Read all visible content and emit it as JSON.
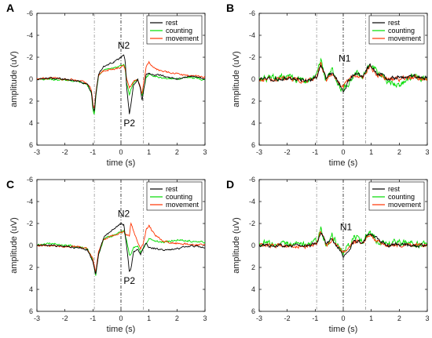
{
  "colors": {
    "rest": "#000000",
    "counting": "#00dd00",
    "movement": "#ff3300"
  },
  "chart_data": [
    {
      "type": "line",
      "panel": "A",
      "xlabel": "time (s)",
      "ylabel": "amplitude (uV)",
      "xlim": [
        -3,
        3
      ],
      "ylim": [
        6,
        -6
      ],
      "y_inverted": true,
      "xticks": [
        -3,
        -2,
        -1,
        0,
        1,
        2,
        3
      ],
      "yticks": [
        -6,
        -4,
        -2,
        0,
        2,
        4,
        6
      ],
      "vlines": [
        -0.95,
        0,
        0.8
      ],
      "legend": [
        "rest",
        "counting",
        "movement"
      ],
      "legend_position": "top-right",
      "annotations": [
        {
          "text": "N2",
          "x": 0.1,
          "y": -2.8
        },
        {
          "text": "P2",
          "x": 0.3,
          "y": 4.3
        }
      ],
      "series": [
        {
          "name": "rest",
          "x": [
            -3,
            -2.5,
            -2,
            -1.5,
            -1.2,
            -1.05,
            -1.0,
            -0.95,
            -0.9,
            -0.8,
            -0.6,
            -0.3,
            -0.1,
            0,
            0.1,
            0.15,
            0.2,
            0.3,
            0.35,
            0.45,
            0.6,
            0.7,
            0.75,
            0.8,
            0.9,
            1.0,
            1.2,
            1.5,
            2.0,
            2.5,
            3.0
          ],
          "y": [
            0,
            -0.1,
            0,
            0.2,
            0.5,
            1.2,
            2.5,
            3.0,
            1.5,
            -0.5,
            -1.2,
            -1.5,
            -1.8,
            -2.0,
            -2.2,
            -1.8,
            0.5,
            3.2,
            2.5,
            0.5,
            0,
            1.0,
            2.0,
            1.2,
            -0.4,
            -0.5,
            -0.4,
            -0.3,
            0,
            -0.3,
            0
          ]
        },
        {
          "name": "counting",
          "x": [
            -3,
            -2.5,
            -2,
            -1.5,
            -1.2,
            -1.05,
            -1.0,
            -0.95,
            -0.9,
            -0.8,
            -0.6,
            -0.3,
            -0.1,
            0,
            0.1,
            0.15,
            0.2,
            0.3,
            0.35,
            0.45,
            0.6,
            0.7,
            0.75,
            0.8,
            0.9,
            1.0,
            1.2,
            1.5,
            2.0,
            2.5,
            3.0
          ],
          "y": [
            0,
            0,
            0.1,
            0.2,
            0.5,
            1.3,
            2.8,
            3.3,
            1.6,
            -0.3,
            -0.9,
            -1.0,
            -1.1,
            -1.2,
            -1.3,
            -1.0,
            0.2,
            1.5,
            1.0,
            0.3,
            0,
            0.8,
            1.6,
            1.0,
            -0.2,
            -0.4,
            -0.3,
            -0.1,
            0,
            -0.2,
            0.1
          ]
        },
        {
          "name": "movement",
          "x": [
            -3,
            -2.5,
            -2,
            -1.5,
            -1.2,
            -1.05,
            -1.0,
            -0.95,
            -0.9,
            -0.8,
            -0.6,
            -0.3,
            -0.1,
            0,
            0.1,
            0.15,
            0.2,
            0.3,
            0.35,
            0.45,
            0.6,
            0.7,
            0.75,
            0.8,
            0.9,
            1.0,
            1.2,
            1.5,
            2.0,
            2.5,
            3.0
          ],
          "y": [
            0,
            -0.1,
            0,
            0.1,
            0.4,
            1.0,
            2.2,
            2.7,
            1.3,
            -0.4,
            -0.8,
            -0.9,
            -1.0,
            -1.1,
            -1.2,
            -0.9,
            0,
            0.8,
            0.6,
            0.2,
            0,
            0.7,
            1.4,
            0.5,
            -1.2,
            -1.5,
            -1.0,
            -0.7,
            -0.5,
            -0.3,
            -0.2
          ]
        }
      ]
    },
    {
      "type": "line",
      "panel": "B",
      "xlabel": "time (s)",
      "ylabel": "amplitude (uV)",
      "xlim": [
        -3,
        3
      ],
      "ylim": [
        6,
        -6
      ],
      "y_inverted": true,
      "xticks": [
        -3,
        -2,
        -1,
        0,
        1,
        2,
        3
      ],
      "yticks": [
        -6,
        -4,
        -2,
        0,
        2,
        4,
        6
      ],
      "vlines": [
        -0.95,
        0,
        0.8
      ],
      "legend": [
        "rest",
        "counting",
        "movement"
      ],
      "legend_position": "top-right",
      "annotations": [
        {
          "text": "N1",
          "x": 0.05,
          "y": -1.6
        }
      ],
      "series": [
        {
          "name": "rest",
          "x": [
            -3,
            -2,
            -1.2,
            -0.95,
            -0.8,
            -0.6,
            -0.4,
            -0.1,
            0,
            0.2,
            0.4,
            0.7,
            0.8,
            0.95,
            1.2,
            1.6,
            2.0,
            2.5,
            3.0
          ],
          "y": [
            0,
            -0.1,
            0.1,
            -0.2,
            -1.3,
            0,
            -0.6,
            0.6,
            1.2,
            0.2,
            -0.5,
            -0.2,
            -0.8,
            -1.2,
            -0.6,
            0,
            -0.2,
            -0.3,
            -0.1
          ]
        },
        {
          "name": "counting",
          "x": [
            -3,
            -2,
            -1.2,
            -0.95,
            -0.8,
            -0.6,
            -0.4,
            -0.1,
            0,
            0.2,
            0.4,
            0.7,
            0.8,
            0.95,
            1.2,
            1.6,
            2.0,
            2.5,
            3.0
          ],
          "y": [
            0,
            -0.2,
            0.2,
            -0.3,
            -1.8,
            0.2,
            -0.8,
            0.7,
            0.9,
            0.3,
            -0.6,
            -0.3,
            -0.9,
            -1.4,
            -0.7,
            0.2,
            0.5,
            -0.4,
            0.1
          ]
        },
        {
          "name": "movement",
          "x": [
            -3,
            -2,
            -1.2,
            -0.95,
            -0.8,
            -0.6,
            -0.4,
            -0.1,
            0,
            0.2,
            0.4,
            0.7,
            0.8,
            0.95,
            1.2,
            1.6,
            2.0,
            2.5,
            3.0
          ],
          "y": [
            0,
            0,
            0.1,
            -0.2,
            -1.4,
            0.1,
            -0.5,
            0.4,
            0.6,
            0.1,
            -0.4,
            -0.2,
            -0.6,
            -1.1,
            -0.5,
            0,
            0,
            -0.2,
            0
          ]
        }
      ]
    },
    {
      "type": "line",
      "panel": "C",
      "xlabel": "time (s)",
      "ylabel": "amplitude (uV)",
      "xlim": [
        -3,
        3
      ],
      "ylim": [
        6,
        -6
      ],
      "y_inverted": true,
      "xticks": [
        -3,
        -2,
        -1,
        0,
        1,
        2,
        3
      ],
      "yticks": [
        -6,
        -4,
        -2,
        0,
        2,
        4,
        6
      ],
      "vlines": [
        -0.95,
        0,
        0.8
      ],
      "legend": [
        "rest",
        "counting",
        "movement"
      ],
      "legend_position": "top-right",
      "annotations": [
        {
          "text": "N2",
          "x": 0.1,
          "y": -2.6
        },
        {
          "text": "P2",
          "x": 0.3,
          "y": 3.5
        }
      ],
      "series": [
        {
          "name": "rest",
          "x": [
            -3,
            -2.5,
            -2,
            -1.5,
            -1.2,
            -1.0,
            -0.9,
            -0.8,
            -0.6,
            -0.3,
            -0.1,
            0,
            0.1,
            0.2,
            0.3,
            0.35,
            0.45,
            0.6,
            0.7,
            0.8,
            0.9,
            1.0,
            1.2,
            1.5,
            2.0,
            2.5,
            3.0
          ],
          "y": [
            0,
            0,
            0.1,
            0.2,
            0.4,
            1.5,
            2.6,
            0.8,
            -0.8,
            -1.4,
            -1.8,
            -2.0,
            -1.9,
            0,
            2.4,
            2.2,
            0.6,
            0.3,
            0.8,
            0.2,
            -0.2,
            0.2,
            0.3,
            0.4,
            0.3,
            0,
            0.2
          ]
        },
        {
          "name": "counting",
          "x": [
            -3,
            -2.5,
            -2,
            -1.5,
            -1.2,
            -1.0,
            -0.9,
            -0.8,
            -0.6,
            -0.3,
            -0.1,
            0,
            0.1,
            0.2,
            0.3,
            0.35,
            0.45,
            0.6,
            0.7,
            0.8,
            0.9,
            1.0,
            1.2,
            1.5,
            2.0,
            2.5,
            3.0
          ],
          "y": [
            0,
            -0.2,
            0,
            0.1,
            0.3,
            1.4,
            2.8,
            0.8,
            -0.6,
            -0.9,
            -1.1,
            -1.2,
            -1.3,
            -0.5,
            0.8,
            0.9,
            0.2,
            0,
            0.6,
            0.3,
            -0.2,
            -0.6,
            -0.4,
            -0.3,
            -0.5,
            -0.4,
            -0.3
          ]
        },
        {
          "name": "movement",
          "x": [
            -3,
            -2.5,
            -2,
            -1.5,
            -1.2,
            -1.0,
            -0.9,
            -0.8,
            -0.6,
            -0.3,
            -0.1,
            0,
            0.1,
            0.2,
            0.3,
            0.35,
            0.45,
            0.6,
            0.7,
            0.8,
            0.9,
            1.0,
            1.2,
            1.5,
            2.0,
            2.5,
            3.0
          ],
          "y": [
            0,
            0,
            0.1,
            0.1,
            0.3,
            1.2,
            2.4,
            0.6,
            -0.6,
            -0.9,
            -1.0,
            -1.1,
            -1.2,
            -1.0,
            -0.8,
            -2.0,
            -1.4,
            -0.3,
            0.4,
            -0.2,
            -1.4,
            -1.8,
            -1.0,
            -0.4,
            -0.2,
            -0.1,
            0
          ]
        }
      ]
    },
    {
      "type": "line",
      "panel": "D",
      "xlabel": "time (s)",
      "ylabel": "amplitude (uV)",
      "xlim": [
        -3,
        3
      ],
      "ylim": [
        6,
        -6
      ],
      "y_inverted": true,
      "xticks": [
        -3,
        -2,
        -1,
        0,
        1,
        2,
        3
      ],
      "yticks": [
        -6,
        -4,
        -2,
        0,
        2,
        4,
        6
      ],
      "vlines": [
        -0.95,
        0,
        0.8
      ],
      "legend": [
        "rest",
        "counting",
        "movement"
      ],
      "legend_position": "top-right",
      "annotations": [
        {
          "text": "N1",
          "x": 0.1,
          "y": -1.4
        }
      ],
      "series": [
        {
          "name": "rest",
          "x": [
            -3,
            -2,
            -1.2,
            -0.95,
            -0.8,
            -0.6,
            -0.4,
            -0.1,
            0,
            0.2,
            0.4,
            0.7,
            0.8,
            0.95,
            1.2,
            1.6,
            2.0,
            2.5,
            3.0
          ],
          "y": [
            0,
            0,
            0,
            -0.2,
            -1.2,
            -0.1,
            -0.6,
            0.5,
            1.1,
            0.4,
            -0.4,
            -0.3,
            -0.7,
            -1.2,
            -0.6,
            0,
            -0.1,
            0,
            0
          ]
        },
        {
          "name": "counting",
          "x": [
            -3,
            -2,
            -1.2,
            -0.95,
            -0.8,
            -0.6,
            -0.4,
            -0.1,
            0,
            0.2,
            0.4,
            0.7,
            0.8,
            0.95,
            1.2,
            1.6,
            2.0,
            2.5,
            3.0
          ],
          "y": [
            -0.3,
            0,
            -0.2,
            -0.4,
            -1.6,
            0,
            -0.9,
            0.4,
            0.7,
            0.1,
            -0.8,
            -0.4,
            -0.9,
            -1.3,
            -0.5,
            -0.2,
            -0.3,
            -0.1,
            0
          ]
        },
        {
          "name": "movement",
          "x": [
            -3,
            -2,
            -1.2,
            -0.95,
            -0.8,
            -0.6,
            -0.4,
            -0.1,
            0,
            0.2,
            0.4,
            0.7,
            0.8,
            0.95,
            1.2,
            1.6,
            2.0,
            2.5,
            3.0
          ],
          "y": [
            0,
            0,
            0.1,
            -0.2,
            -1.3,
            0,
            -0.5,
            0.3,
            0.6,
            0.2,
            -0.4,
            -0.2,
            -0.6,
            -1.0,
            -0.4,
            0,
            0,
            -0.1,
            0
          ]
        }
      ]
    }
  ]
}
